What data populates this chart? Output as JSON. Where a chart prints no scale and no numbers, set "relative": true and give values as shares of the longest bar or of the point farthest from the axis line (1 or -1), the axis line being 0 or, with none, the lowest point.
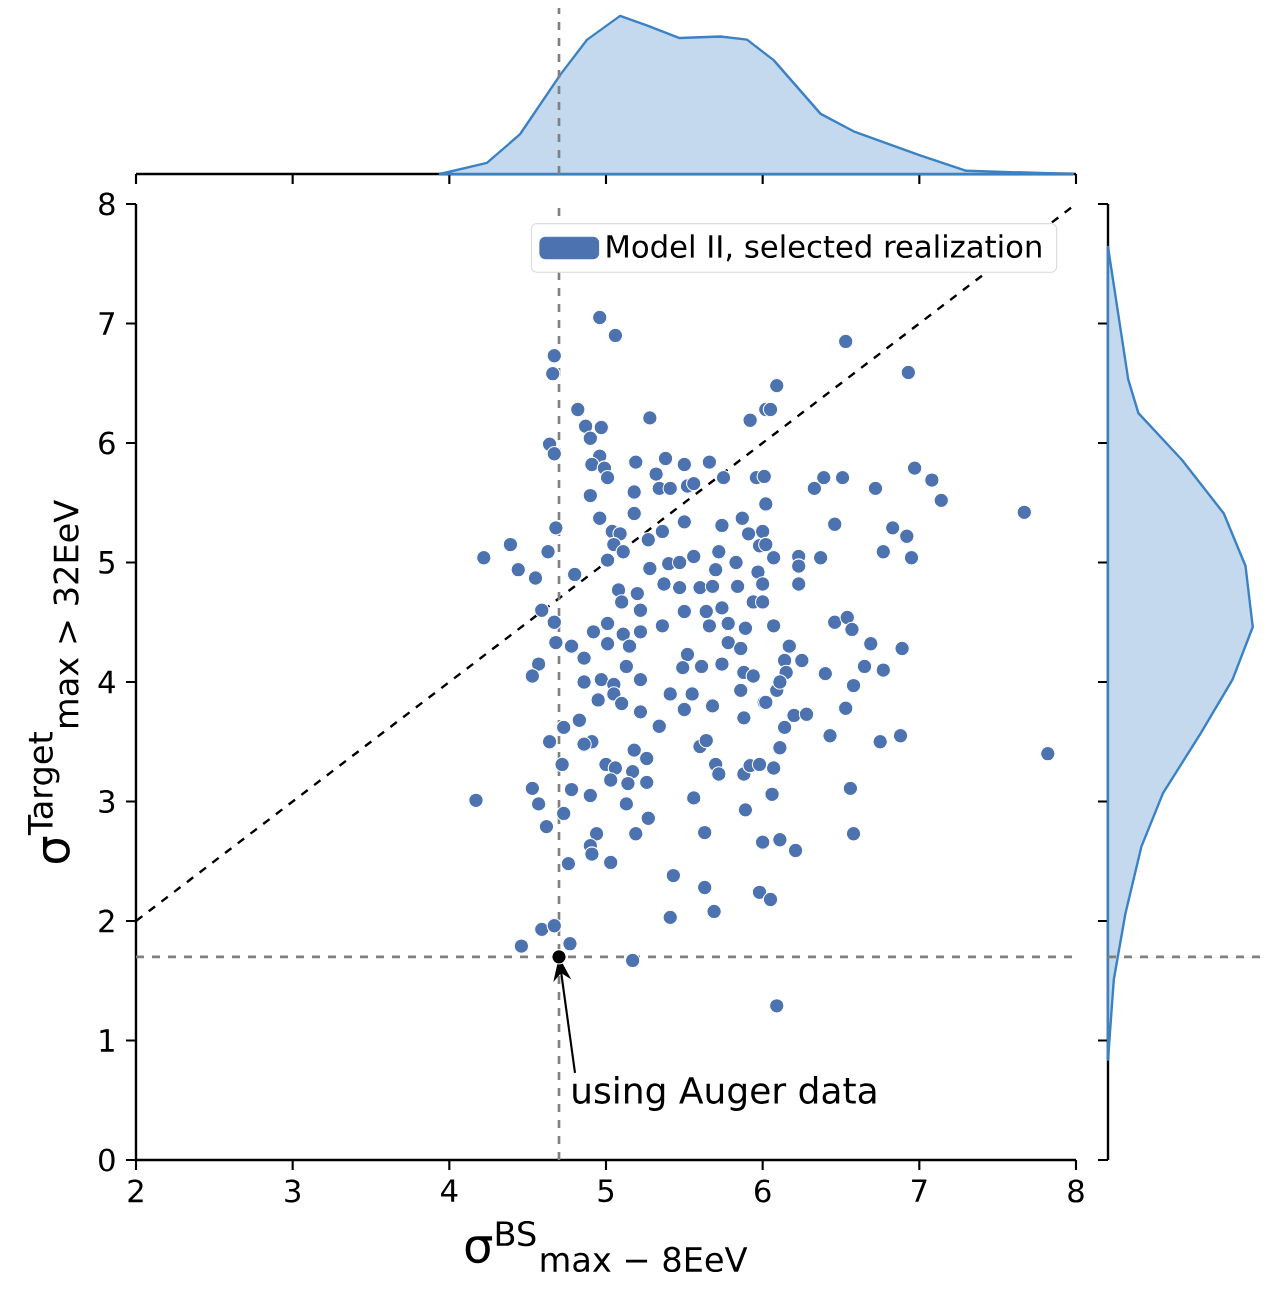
{
  "chart_data": [
    {
      "type": "scatter",
      "xlabel": "σ$^{BS}$$_{max − 8EeV}$",
      "ylabel": "σ$^{Target}$$_{max > 32EeV}$",
      "xlim": [
        2,
        8
      ],
      "ylim": [
        0,
        8
      ],
      "xticks": [
        2,
        3,
        4,
        5,
        6,
        7,
        8
      ],
      "yticks": [
        0,
        1,
        2,
        3,
        4,
        5,
        6,
        7,
        8
      ],
      "marker": "circle",
      "legend": "top right",
      "series": [
        {
          "type": "line",
          "color": "#000000",
          "line_style": "dashed",
          "marker": "none",
          "x": [
            2,
            8
          ],
          "values": [
            2,
            8
          ]
        },
        {
          "name": "Model II, selected realization",
          "color": "#4c72b0",
          "x": [
            4.96,
            5.06,
            4.67,
            4.66,
            4.82,
            4.87,
            4.97,
            4.9,
            5.28,
            4.64,
            4.67,
            4.96,
            4.91,
            4.99,
            5.01,
            5.19,
            5.38,
            5.5,
            5.66,
            5.32,
            5.18,
            5.34,
            5.41,
            5.52,
            5.56,
            5.75,
            5.92,
            6.02,
            5.96,
            4.9,
            5.18,
            4.96,
            4.68,
            5.04,
            5.09,
            5.05,
            5.27,
            5.5,
            5.36,
            5.74,
            5.87,
            5.91,
            4.22,
            4.39,
            4.44,
            4.55,
            4.63,
            4.8,
            5.01,
            5.11,
            5.28,
            5.4,
            5.47,
            5.56,
            5.72,
            5.7,
            5.83,
            5.97,
            5.98,
            5.08,
            5.2,
            5.37,
            5.47,
            5.6,
            5.68,
            5.84,
            5.1,
            5.22,
            5.5,
            5.64,
            5.74,
            5.94,
            4.59,
            4.67,
            5.01,
            4.92,
            5.11,
            5.22,
            5.36,
            5.66,
            5.78,
            5.89,
            4.68,
            4.78,
            5.01,
            5.15,
            5.52,
            5.78,
            5.86,
            4.57,
            4.86,
            5.13,
            5.49,
            5.61,
            5.74,
            6.53,
            6.93,
            6.09,
            6.05,
            6.97,
            7.08,
            7.14,
            7.67,
            6.01,
            6.33,
            6.39,
            6.51,
            6.72,
            6.02,
            6.46,
            6.83,
            6.92,
            6.77,
            6.95,
            6.0,
            6.02,
            6.07,
            6.23,
            6.37,
            6.23,
            6.0,
            6.23,
            6.0,
            6.07,
            6.46,
            6.54,
            6.57,
            6.69,
            6.89,
            6.17,
            6.14,
            6.25,
            6.65,
            6.77,
            6.4,
            6.15,
            4.53,
            4.86,
            4.97,
            5.05,
            5.22,
            5.88,
            5.41,
            5.55,
            5.05,
            4.95,
            5.1,
            5.5,
            5.68,
            5.86,
            6.01,
            5.22,
            4.83,
            5.88,
            4.73,
            5.34,
            4.64,
            4.91,
            4.86,
            5.18,
            5.26,
            5.6,
            5.64,
            4.72,
            5.0,
            5.06,
            5.17,
            5.03,
            5.14,
            5.26,
            5.7,
            5.72,
            5.88,
            5.92,
            5.98,
            4.17,
            4.53,
            4.57,
            4.78,
            4.9,
            5.13,
            5.56,
            4.62,
            4.73,
            5.27,
            4.94,
            5.19,
            5.63,
            5.89,
            4.9,
            4.91,
            5.03,
            4.76,
            6.0,
            5.43,
            5.63,
            5.98,
            5.41,
            5.69,
            4.59,
            4.67,
            4.46,
            4.77,
            5.17,
            5.94,
            6.58,
            6.09,
            6.02,
            6.11,
            6.53,
            6.2,
            6.28,
            6.14,
            6.43,
            6.75,
            6.88,
            7.82,
            6.11,
            6.07,
            6.56,
            6.06,
            6.58,
            6.11,
            6.21,
            6.05,
            6.09
          ],
          "values": [
            7.05,
            6.9,
            6.73,
            6.58,
            6.28,
            6.14,
            6.13,
            6.04,
            6.21,
            5.99,
            5.91,
            5.89,
            5.82,
            5.79,
            5.71,
            5.84,
            5.87,
            5.82,
            5.84,
            5.74,
            5.59,
            5.62,
            5.62,
            5.64,
            5.66,
            5.71,
            6.19,
            6.28,
            5.71,
            5.56,
            5.41,
            5.37,
            5.29,
            5.26,
            5.24,
            5.15,
            5.19,
            5.34,
            5.26,
            5.31,
            5.37,
            5.24,
            5.04,
            5.15,
            4.94,
            4.87,
            5.09,
            4.9,
            5.02,
            5.09,
            4.95,
            4.99,
            5.0,
            5.05,
            5.09,
            4.94,
            5.0,
            4.92,
            5.14,
            4.77,
            4.74,
            4.82,
            4.79,
            4.79,
            4.8,
            4.8,
            4.67,
            4.6,
            4.59,
            4.59,
            4.62,
            4.67,
            4.6,
            4.5,
            4.49,
            4.42,
            4.4,
            4.42,
            4.47,
            4.47,
            4.49,
            4.45,
            4.33,
            4.3,
            4.32,
            4.3,
            4.23,
            4.33,
            4.28,
            4.15,
            4.2,
            4.13,
            4.12,
            4.13,
            4.15,
            6.85,
            6.59,
            6.48,
            6.28,
            5.79,
            5.69,
            5.52,
            5.42,
            5.72,
            5.62,
            5.71,
            5.71,
            5.62,
            5.49,
            5.32,
            5.29,
            5.22,
            5.09,
            5.04,
            5.26,
            5.15,
            5.04,
            5.05,
            5.04,
            4.97,
            4.82,
            4.82,
            4.67,
            4.47,
            4.5,
            4.54,
            4.44,
            4.32,
            4.28,
            4.3,
            4.18,
            4.18,
            4.13,
            4.1,
            4.07,
            4.08,
            4.05,
            4.0,
            4.02,
            3.98,
            4.02,
            4.08,
            3.9,
            3.9,
            3.9,
            3.85,
            3.82,
            3.77,
            3.8,
            3.93,
            3.83,
            3.75,
            3.68,
            3.7,
            3.62,
            3.63,
            3.5,
            3.5,
            3.48,
            3.43,
            3.36,
            3.46,
            3.51,
            3.31,
            3.31,
            3.28,
            3.25,
            3.18,
            3.15,
            3.16,
            3.31,
            3.23,
            3.23,
            3.3,
            3.31,
            3.01,
            3.11,
            2.98,
            3.1,
            3.05,
            2.98,
            3.03,
            2.79,
            2.9,
            2.86,
            2.73,
            2.73,
            2.74,
            2.93,
            2.63,
            2.56,
            2.49,
            2.48,
            2.66,
            2.38,
            2.28,
            2.24,
            2.03,
            2.08,
            1.93,
            1.96,
            1.79,
            1.81,
            1.67,
            4.05,
            3.97,
            3.93,
            3.83,
            4.0,
            3.78,
            3.72,
            3.73,
            3.62,
            3.55,
            3.5,
            3.55,
            3.4,
            3.45,
            3.28,
            3.11,
            3.06,
            2.73,
            2.68,
            2.59,
            2.18,
            1.29
          ]
        },
        {
          "color": "#000000",
          "x": [
            4.7
          ],
          "values": [
            1.7
          ]
        }
      ],
      "ref_lines": [
        {
          "axis": "x",
          "value": 4.7,
          "color": "#808080",
          "line_style": "dashed"
        },
        {
          "axis": "y",
          "value": 1.7,
          "color": "#808080",
          "line_style": "dashed"
        }
      ],
      "annotations": [
        {
          "text": "using Auger data",
          "x": 4.7,
          "y": 1.7
        }
      ]
    },
    {
      "type": "area",
      "relative": true,
      "tick_labels": false,
      "xlim": [
        2,
        8
      ],
      "xticks": [
        2,
        3,
        4,
        5,
        6,
        7,
        8
      ],
      "series": [
        {
          "color": "#3b82c4",
          "x": [
            3.94,
            4.24,
            4.45,
            4.71,
            4.88,
            5.09,
            5.26,
            5.47,
            5.73,
            5.9,
            6.07,
            6.37,
            6.58,
            7.0,
            7.3,
            7.98
          ],
          "values": [
            0,
            0.07,
            0.25,
            0.63,
            0.85,
            1.0,
            0.94,
            0.86,
            0.87,
            0.85,
            0.72,
            0.38,
            0.27,
            0.12,
            0.02,
            0
          ]
        }
      ],
      "ref_lines": [
        {
          "axis": "x",
          "value": 4.7,
          "color": "#808080",
          "line_style": "dashed"
        }
      ]
    },
    {
      "type": "area",
      "relative": true,
      "orientation": "horizontal",
      "tick_labels": false,
      "ylim": [
        0,
        8
      ],
      "yticks": [
        0,
        1,
        2,
        3,
        4,
        5,
        6,
        7,
        8
      ],
      "series": [
        {
          "color": "#3b82c4",
          "x": [
            0.84,
            1.51,
            2.06,
            2.62,
            3.07,
            3.57,
            4.02,
            4.46,
            4.97,
            5.41,
            5.86,
            6.25,
            6.53,
            7.64
          ],
          "values": [
            0,
            0.04,
            0.12,
            0.23,
            0.38,
            0.64,
            0.86,
            1.0,
            0.95,
            0.8,
            0.51,
            0.21,
            0.14,
            0
          ]
        }
      ],
      "ref_lines": [
        {
          "axis": "y",
          "value": 1.7,
          "color": "#808080",
          "line_style": "dashed"
        }
      ]
    }
  ]
}
